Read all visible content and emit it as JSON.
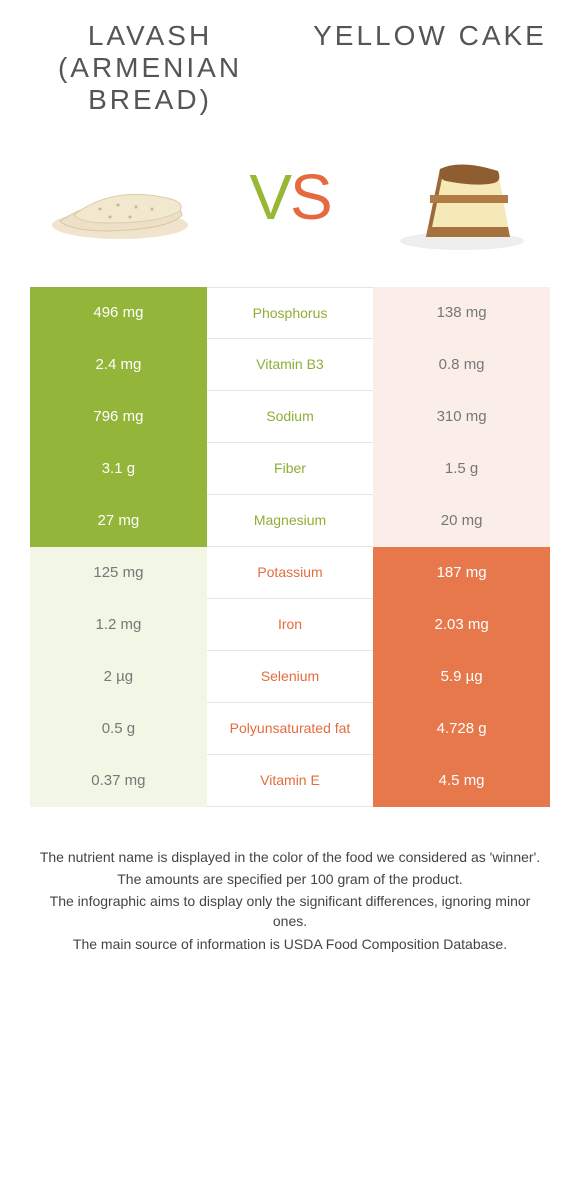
{
  "colors": {
    "green": "#93b53a",
    "orange": "#e6784c",
    "green_text": "#8fae38",
    "orange_text": "#e46c3e",
    "green_pale": "#f2f6e4",
    "orange_pale": "#fbeee9"
  },
  "titles": {
    "left": "LAVASH (ARMENIAN BREAD)",
    "right": "YELLOW CAKE"
  },
  "vs": {
    "v": "V",
    "s": "S"
  },
  "rows": [
    {
      "left": "496 mg",
      "mid": "Phosphorus",
      "right": "138 mg",
      "winner": "left"
    },
    {
      "left": "2.4 mg",
      "mid": "Vitamin B3",
      "right": "0.8 mg",
      "winner": "left"
    },
    {
      "left": "796 mg",
      "mid": "Sodium",
      "right": "310 mg",
      "winner": "left"
    },
    {
      "left": "3.1 g",
      "mid": "Fiber",
      "right": "1.5 g",
      "winner": "left"
    },
    {
      "left": "27 mg",
      "mid": "Magnesium",
      "right": "20 mg",
      "winner": "left"
    },
    {
      "left": "125 mg",
      "mid": "Potassium",
      "right": "187 mg",
      "winner": "right"
    },
    {
      "left": "1.2 mg",
      "mid": "Iron",
      "right": "2.03 mg",
      "winner": "right"
    },
    {
      "left": "2 µg",
      "mid": "Selenium",
      "right": "5.9 µg",
      "winner": "right"
    },
    {
      "left": "0.5 g",
      "mid": "Polyunsaturated fat",
      "right": "4.728 g",
      "winner": "right"
    },
    {
      "left": "0.37 mg",
      "mid": "Vitamin E",
      "right": "4.5 mg",
      "winner": "right"
    }
  ],
  "notes": [
    "The nutrient name is displayed in the color of the food we considered as 'winner'.",
    "The amounts are specified per 100 gram of the product.",
    "The infographic aims to display only the significant differences, ignoring minor ones.",
    "The main source of information is USDA Food Composition Database."
  ]
}
